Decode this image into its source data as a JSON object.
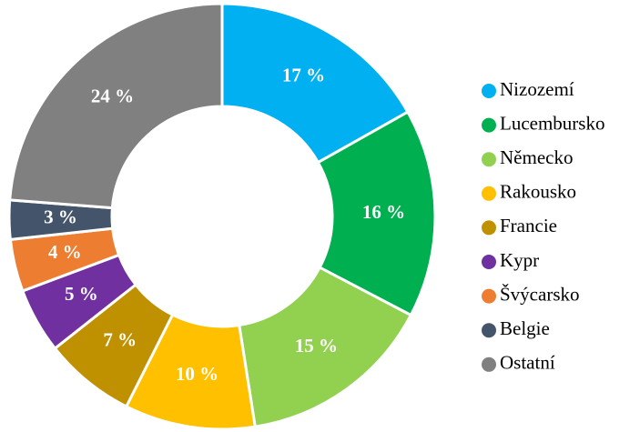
{
  "chart_data": {
    "type": "donut",
    "categories": [
      "Nizozemí",
      "Lucembursko",
      "Německo",
      "Rakousko",
      "Francie",
      "Kypr",
      "Švýcarsko",
      "Belgie",
      "Ostatní"
    ],
    "values": [
      17,
      16,
      15,
      10,
      7,
      5,
      4,
      3,
      24
    ],
    "value_labels": [
      "17 %",
      "16 %",
      "15 %",
      "10 %",
      "7 %",
      "5 %",
      "4 %",
      "3 %",
      "24 %"
    ],
    "colors": [
      "#00b0f0",
      "#00b050",
      "#92d050",
      "#ffc000",
      "#bf9000",
      "#7030a0",
      "#ed7d31",
      "#44546a",
      "#808080"
    ],
    "legend": "right"
  }
}
